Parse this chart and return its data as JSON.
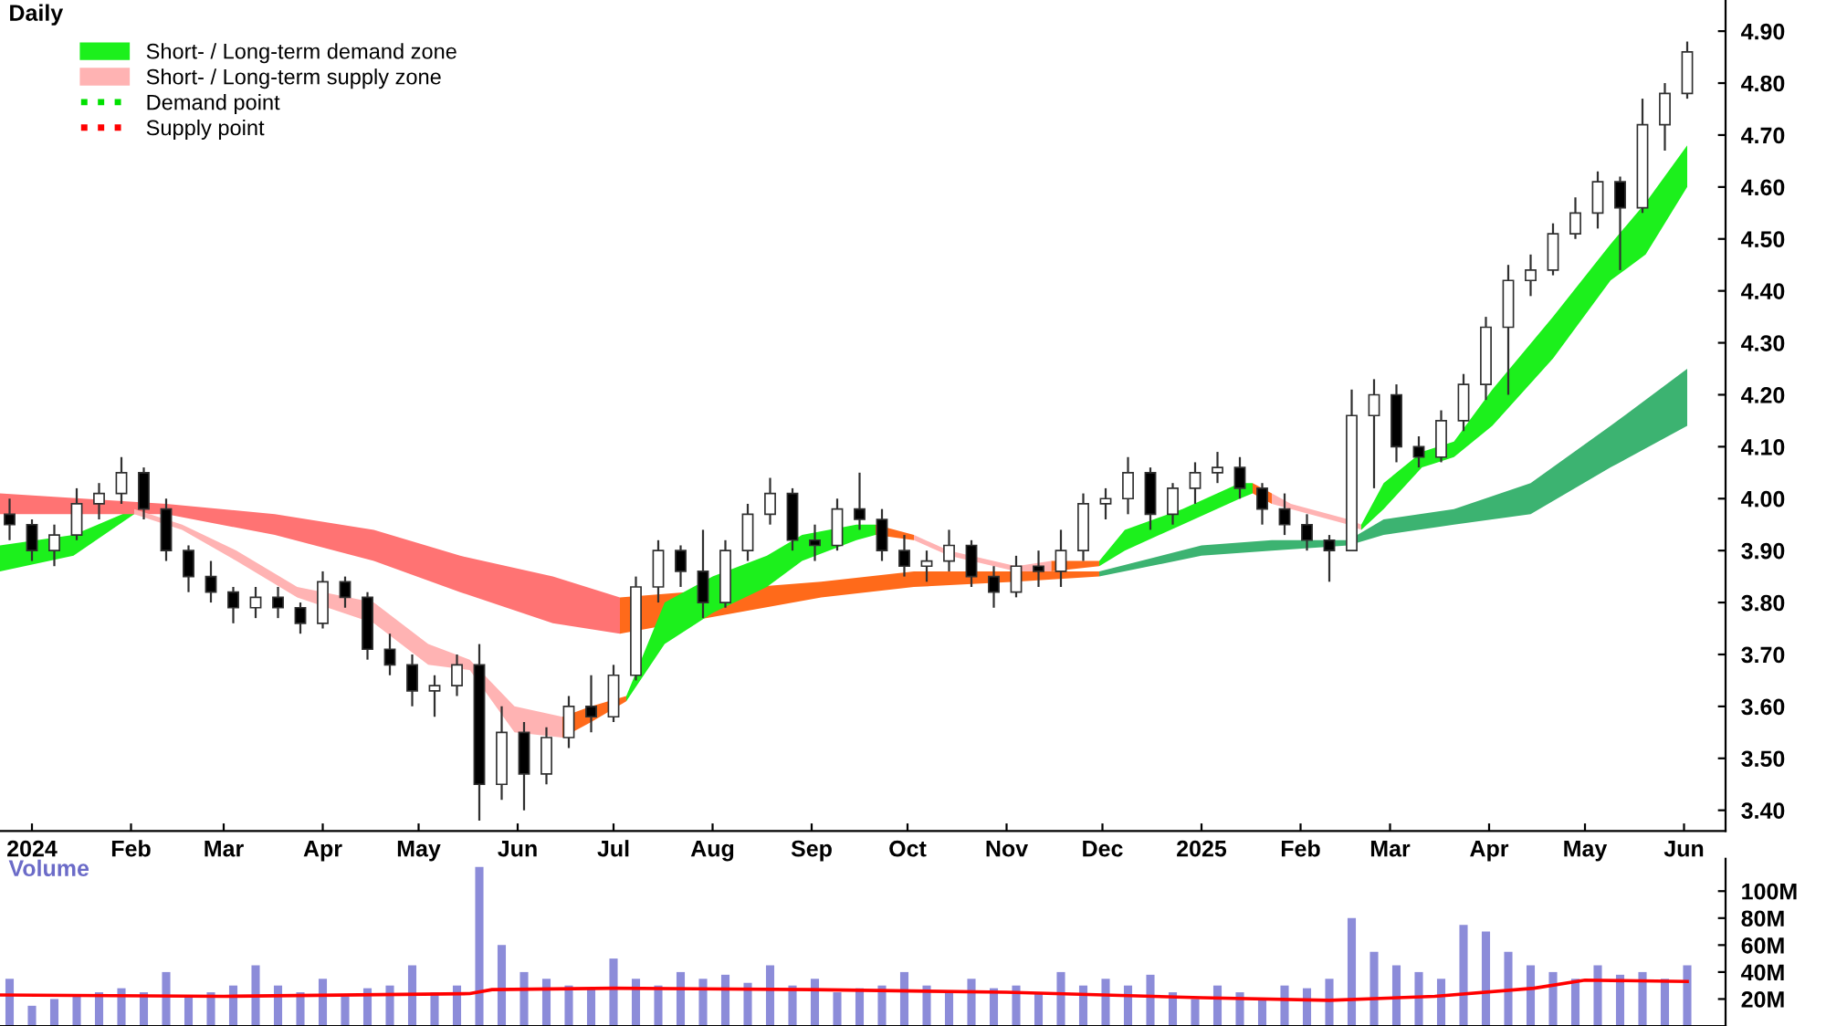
{
  "chart_data": [
    {
      "type": "candlestick",
      "title": "Daily",
      "x": [
        "2023-12-25",
        "2024-01-01",
        "2024-01-08",
        "2024-01-15",
        "2024-01-22",
        "2024-01-29",
        "2024-02-05",
        "2024-02-12",
        "2024-02-19",
        "2024-02-26",
        "2024-03-04",
        "2024-03-11",
        "2024-03-18",
        "2024-03-25",
        "2024-04-01",
        "2024-04-08",
        "2024-04-15",
        "2024-04-22",
        "2024-04-29",
        "2024-05-06",
        "2024-05-13",
        "2024-05-20",
        "2024-05-27",
        "2024-06-03",
        "2024-06-10",
        "2024-06-17",
        "2024-06-24",
        "2024-07-01",
        "2024-07-08",
        "2024-07-15",
        "2024-07-22",
        "2024-07-29",
        "2024-08-05",
        "2024-08-12",
        "2024-08-19",
        "2024-08-26",
        "2024-09-02",
        "2024-09-09",
        "2024-09-16",
        "2024-09-23",
        "2024-09-30",
        "2024-10-07",
        "2024-10-14",
        "2024-10-21",
        "2024-10-28",
        "2024-11-04",
        "2024-11-11",
        "2024-11-18",
        "2024-11-25",
        "2024-12-02",
        "2024-12-09",
        "2024-12-16",
        "2024-12-23",
        "2024-12-30",
        "2025-01-06",
        "2025-01-13",
        "2025-01-20",
        "2025-01-27",
        "2025-02-03",
        "2025-02-10",
        "2025-02-17",
        "2025-02-24",
        "2025-03-03",
        "2025-03-10",
        "2025-03-17",
        "2025-03-24",
        "2025-03-31",
        "2025-04-07",
        "2025-04-14",
        "2025-04-21",
        "2025-04-28",
        "2025-05-05",
        "2025-05-12",
        "2025-05-19",
        "2025-05-26",
        "2025-06-02"
      ],
      "ohlc": [
        [
          3.97,
          4.0,
          3.92,
          3.95
        ],
        [
          3.95,
          3.96,
          3.88,
          3.9
        ],
        [
          3.9,
          3.95,
          3.87,
          3.93
        ],
        [
          3.93,
          4.02,
          3.92,
          3.99
        ],
        [
          3.99,
          4.03,
          3.96,
          4.01
        ],
        [
          4.01,
          4.08,
          3.99,
          4.05
        ],
        [
          4.05,
          4.06,
          3.96,
          3.98
        ],
        [
          3.98,
          4.0,
          3.88,
          3.9
        ],
        [
          3.9,
          3.91,
          3.82,
          3.85
        ],
        [
          3.85,
          3.88,
          3.8,
          3.82
        ],
        [
          3.82,
          3.83,
          3.76,
          3.79
        ],
        [
          3.79,
          3.83,
          3.77,
          3.81
        ],
        [
          3.81,
          3.83,
          3.77,
          3.79
        ],
        [
          3.79,
          3.8,
          3.74,
          3.76
        ],
        [
          3.76,
          3.86,
          3.75,
          3.84
        ],
        [
          3.84,
          3.85,
          3.79,
          3.81
        ],
        [
          3.81,
          3.82,
          3.69,
          3.71
        ],
        [
          3.71,
          3.74,
          3.66,
          3.68
        ],
        [
          3.68,
          3.7,
          3.6,
          3.63
        ],
        [
          3.63,
          3.66,
          3.58,
          3.64
        ],
        [
          3.64,
          3.7,
          3.62,
          3.68
        ],
        [
          3.68,
          3.72,
          3.38,
          3.45
        ],
        [
          3.45,
          3.6,
          3.42,
          3.55
        ],
        [
          3.55,
          3.57,
          3.4,
          3.47
        ],
        [
          3.47,
          3.56,
          3.45,
          3.54
        ],
        [
          3.54,
          3.62,
          3.52,
          3.6
        ],
        [
          3.6,
          3.66,
          3.55,
          3.58
        ],
        [
          3.58,
          3.68,
          3.57,
          3.66
        ],
        [
          3.66,
          3.85,
          3.65,
          3.83
        ],
        [
          3.83,
          3.92,
          3.8,
          3.9
        ],
        [
          3.9,
          3.91,
          3.83,
          3.86
        ],
        [
          3.86,
          3.94,
          3.77,
          3.8
        ],
        [
          3.8,
          3.92,
          3.79,
          3.9
        ],
        [
          3.9,
          3.99,
          3.88,
          3.97
        ],
        [
          3.97,
          4.04,
          3.95,
          4.01
        ],
        [
          4.01,
          4.02,
          3.9,
          3.92
        ],
        [
          3.92,
          3.95,
          3.88,
          3.91
        ],
        [
          3.91,
          4.0,
          3.9,
          3.98
        ],
        [
          3.98,
          4.05,
          3.94,
          3.96
        ],
        [
          3.96,
          3.98,
          3.88,
          3.9
        ],
        [
          3.9,
          3.93,
          3.85,
          3.87
        ],
        [
          3.87,
          3.9,
          3.84,
          3.88
        ],
        [
          3.88,
          3.94,
          3.86,
          3.91
        ],
        [
          3.91,
          3.92,
          3.83,
          3.85
        ],
        [
          3.85,
          3.87,
          3.79,
          3.82
        ],
        [
          3.82,
          3.89,
          3.81,
          3.87
        ],
        [
          3.87,
          3.9,
          3.83,
          3.86
        ],
        [
          3.86,
          3.94,
          3.83,
          3.9
        ],
        [
          3.9,
          4.01,
          3.88,
          3.99
        ],
        [
          3.99,
          4.02,
          3.96,
          4.0
        ],
        [
          4.0,
          4.08,
          3.97,
          4.05
        ],
        [
          4.05,
          4.06,
          3.94,
          3.97
        ],
        [
          3.97,
          4.03,
          3.95,
          4.02
        ],
        [
          4.02,
          4.07,
          3.99,
          4.05
        ],
        [
          4.05,
          4.09,
          4.03,
          4.06
        ],
        [
          4.06,
          4.08,
          4.0,
          4.02
        ],
        [
          4.02,
          4.03,
          3.95,
          3.98
        ],
        [
          3.98,
          4.01,
          3.93,
          3.95
        ],
        [
          3.95,
          3.97,
          3.9,
          3.92
        ],
        [
          3.92,
          3.93,
          3.84,
          3.9
        ],
        [
          3.9,
          4.21,
          3.9,
          4.16
        ],
        [
          4.16,
          4.23,
          4.02,
          4.2
        ],
        [
          4.2,
          4.22,
          4.07,
          4.1
        ],
        [
          4.1,
          4.12,
          4.06,
          4.08
        ],
        [
          4.08,
          4.17,
          4.07,
          4.15
        ],
        [
          4.15,
          4.24,
          4.13,
          4.22
        ],
        [
          4.22,
          4.35,
          4.19,
          4.33
        ],
        [
          4.33,
          4.45,
          4.2,
          4.42
        ],
        [
          4.42,
          4.47,
          4.39,
          4.44
        ],
        [
          4.44,
          4.53,
          4.43,
          4.51
        ],
        [
          4.51,
          4.58,
          4.5,
          4.55
        ],
        [
          4.55,
          4.63,
          4.52,
          4.61
        ],
        [
          4.61,
          4.62,
          4.44,
          4.56
        ],
        [
          4.56,
          4.77,
          4.55,
          4.72
        ],
        [
          4.72,
          4.8,
          4.67,
          4.78
        ],
        [
          4.78,
          4.88,
          4.77,
          4.86
        ]
      ],
      "series": [
        {
          "type": "line",
          "color": "#3cb371",
          "x": [
            "2024-11-30",
            "2025-01-01",
            "2025-01-23",
            "2025-02-16",
            "2025-02-27",
            "2025-03-21",
            "2025-04-14",
            "2025-05-09",
            "2025-06-02"
          ],
          "values": [
            null,
            null,
            null,
            null,
            null,
            null,
            null,
            null,
            null
          ],
          "upper": [
            3.86,
            3.91,
            3.92,
            3.92,
            3.96,
            3.98,
            4.03,
            4.14,
            4.25
          ],
          "lower": [
            3.85,
            3.89,
            3.9,
            3.91,
            3.93,
            3.95,
            3.97,
            4.06,
            4.14
          ]
        },
        {
          "type": "line",
          "name": "Short- / Long-term demand zone",
          "color": "#1cf01c",
          "x": [
            "2023-12-22",
            "2024-01-14",
            "2024-02-02"
          ],
          "values": [
            null,
            null,
            null
          ],
          "upper": [
            3.91,
            3.93,
            3.98
          ],
          "lower": [
            3.86,
            3.89,
            3.97
          ]
        },
        {
          "type": "line",
          "color": "#ff7373",
          "x": [
            "2023-12-22",
            "2024-02-12",
            "2024-03-17",
            "2024-04-17",
            "2024-05-14",
            "2024-06-12",
            "2024-07-03"
          ],
          "values": [
            null,
            null,
            null,
            null,
            null,
            null,
            null
          ],
          "upper": [
            4.01,
            3.99,
            3.97,
            3.94,
            3.89,
            3.85,
            3.81
          ],
          "lower": [
            3.97,
            3.97,
            3.93,
            3.88,
            3.82,
            3.76,
            3.74
          ]
        },
        {
          "type": "line",
          "name": "Short- / Long-term supply zone",
          "color": "#ffb3b3",
          "x": [
            "2024-02-02",
            "2024-02-17",
            "2024-03-05",
            "2024-03-24",
            "2024-04-17",
            "2024-05-04",
            "2024-05-17",
            "2024-05-31",
            "2024-06-15"
          ],
          "values": [
            null,
            null,
            null,
            null,
            null,
            null,
            null,
            null,
            null
          ],
          "upper": [
            3.98,
            3.95,
            3.9,
            3.83,
            3.8,
            3.72,
            3.69,
            3.6,
            3.58
          ],
          "lower": [
            3.97,
            3.94,
            3.88,
            3.81,
            3.76,
            3.68,
            3.67,
            3.55,
            3.54
          ]
        },
        {
          "type": "line",
          "color": "#ff6a1a",
          "x": [
            "2024-07-03",
            "2024-09-04",
            "2024-10-03",
            "2024-11-04",
            "2024-11-30"
          ],
          "values": [
            null,
            null,
            null,
            null,
            null
          ],
          "upper": [
            3.81,
            3.84,
            3.86,
            3.86,
            3.86
          ],
          "lower": [
            3.74,
            3.81,
            3.83,
            3.84,
            3.85
          ]
        },
        {
          "type": "line",
          "color": "#ff6a1a",
          "x": [
            "2024-06-15",
            "2024-06-24",
            "2024-07-05"
          ],
          "values": [
            null,
            null,
            null
          ],
          "upper": [
            3.58,
            3.6,
            3.62
          ],
          "lower": [
            3.54,
            3.57,
            3.61
          ]
        },
        {
          "type": "line",
          "color": "#1cf01c",
          "x": [
            "2024-07-05",
            "2024-07-17",
            "2024-08-01",
            "2024-08-18",
            "2024-08-29",
            "2024-09-15",
            "2024-09-21"
          ],
          "values": [
            null,
            null,
            null,
            null,
            null,
            null,
            null
          ],
          "upper": [
            3.62,
            3.8,
            3.85,
            3.89,
            3.93,
            3.95,
            3.95
          ],
          "lower": [
            3.61,
            3.72,
            3.78,
            3.83,
            3.88,
            3.92,
            3.93
          ]
        },
        {
          "type": "line",
          "color": "#ff6a1a",
          "x": [
            "2024-09-21",
            "2024-10-03"
          ],
          "values": [
            null,
            null
          ],
          "upper": [
            3.95,
            3.93
          ],
          "lower": [
            3.93,
            3.92
          ]
        },
        {
          "type": "line",
          "color": "#ffb3b3",
          "x": [
            "2024-10-03",
            "2024-10-14",
            "2024-11-04",
            "2024-11-15"
          ],
          "values": [
            null,
            null,
            null,
            null
          ],
          "upper": [
            3.93,
            3.9,
            3.87,
            3.88
          ],
          "lower": [
            3.92,
            3.89,
            3.86,
            3.86
          ]
        },
        {
          "type": "line",
          "color": "#ff6a1a",
          "x": [
            "2024-11-15",
            "2024-11-30"
          ],
          "values": [
            null,
            null
          ],
          "upper": [
            3.88,
            3.88
          ],
          "lower": [
            3.86,
            3.87
          ]
        },
        {
          "type": "line",
          "color": "#1cf01c",
          "x": [
            "2024-11-30",
            "2024-12-08",
            "2024-12-26",
            "2025-01-13",
            "2025-01-17"
          ],
          "values": [
            null,
            null,
            null,
            null,
            null
          ],
          "upper": [
            3.88,
            3.94,
            3.98,
            4.03,
            4.03
          ],
          "lower": [
            3.87,
            3.9,
            3.95,
            4.0,
            4.01
          ]
        },
        {
          "type": "line",
          "color": "#ff6a1a",
          "x": [
            "2025-01-17",
            "2025-01-23"
          ],
          "values": [
            null,
            null
          ],
          "upper": [
            4.03,
            4.01
          ],
          "lower": [
            4.01,
            3.99
          ]
        },
        {
          "type": "line",
          "color": "#ffb3b3",
          "x": [
            "2025-01-23",
            "2025-01-29",
            "2025-02-16",
            "2025-02-20"
          ],
          "values": [
            null,
            null,
            null,
            null
          ],
          "upper": [
            4.01,
            3.99,
            3.96,
            3.95
          ],
          "lower": [
            3.99,
            3.98,
            3.95,
            3.94
          ]
        },
        {
          "type": "line",
          "color": "#1cf01c",
          "x": [
            "2025-02-20",
            "2025-02-27",
            "2025-03-11",
            "2025-03-21",
            "2025-04-02",
            "2025-04-21",
            "2025-05-09",
            "2025-05-20",
            "2025-06-02"
          ],
          "values": [
            null,
            null,
            null,
            null,
            null,
            null,
            null,
            null,
            null
          ],
          "upper": [
            3.95,
            4.03,
            4.09,
            4.11,
            4.21,
            4.35,
            4.49,
            4.57,
            4.68
          ],
          "lower": [
            3.94,
            3.98,
            4.06,
            4.08,
            4.14,
            4.27,
            4.42,
            4.47,
            4.6
          ]
        },
        {
          "type": "line",
          "name": "Demand point",
          "color": "#00e000",
          "line_style": "dotted",
          "values": [
            null,
            null,
            null,
            null,
            null,
            null,
            null,
            null,
            null,
            null,
            null,
            null,
            null,
            null,
            null,
            null,
            null,
            null,
            null,
            null,
            null,
            null,
            null,
            null,
            null,
            null,
            null,
            null,
            null,
            null,
            null,
            null,
            null,
            null,
            null,
            null,
            null,
            null,
            null,
            null,
            null,
            null,
            null,
            null,
            null,
            null,
            null,
            null,
            null,
            null,
            null,
            null,
            null,
            null,
            null,
            null,
            null,
            null,
            null,
            null,
            null,
            null,
            null,
            null,
            null,
            null,
            null,
            null,
            null,
            null,
            null,
            null,
            null,
            null,
            null,
            null
          ]
        },
        {
          "type": "line",
          "name": "Supply point",
          "color": "#ff0000",
          "line_style": "dotted",
          "values": [
            null,
            null,
            null,
            null,
            null,
            null,
            null,
            null,
            null,
            null,
            null,
            null,
            null,
            null,
            null,
            null,
            null,
            null,
            null,
            null,
            null,
            null,
            null,
            null,
            null,
            null,
            null,
            null,
            null,
            null,
            null,
            null,
            null,
            null,
            null,
            null,
            null,
            null,
            null,
            null,
            null,
            null,
            null,
            null,
            null,
            null,
            null,
            null,
            null,
            null,
            null,
            null,
            null,
            null,
            null,
            null,
            null,
            null,
            null,
            null,
            null,
            null,
            null,
            null,
            null,
            null,
            null,
            null,
            null,
            null,
            null,
            null,
            null,
            null,
            null,
            null
          ]
        }
      ],
      "xlim": [
        "2023-12-22",
        "2025-06-14"
      ],
      "xticks": [
        {
          "value": "2024-01-01",
          "label": "2024"
        },
        {
          "value": "2024-02-01",
          "label": "Feb"
        },
        {
          "value": "2024-03-01",
          "label": "Mar"
        },
        {
          "value": "2024-04-01",
          "label": "Apr"
        },
        {
          "value": "2024-05-01",
          "label": "May"
        },
        {
          "value": "2024-06-01",
          "label": "Jun"
        },
        {
          "value": "2024-07-01",
          "label": "Jul"
        },
        {
          "value": "2024-08-01",
          "label": "Aug"
        },
        {
          "value": "2024-09-01",
          "label": "Sep"
        },
        {
          "value": "2024-10-01",
          "label": "Oct"
        },
        {
          "value": "2024-11-01",
          "label": "Nov"
        },
        {
          "value": "2024-12-01",
          "label": "Dec"
        },
        {
          "value": "2025-01-01",
          "label": "2025"
        },
        {
          "value": "2025-02-01",
          "label": "Feb"
        },
        {
          "value": "2025-03-01",
          "label": "Mar"
        },
        {
          "value": "2025-04-01",
          "label": "Apr"
        },
        {
          "value": "2025-05-01",
          "label": "May"
        },
        {
          "value": "2025-06-01",
          "label": "Jun"
        }
      ],
      "ylim": [
        3.36,
        4.96
      ],
      "yticks": [
        {
          "value": 3.4,
          "label": "3.40"
        },
        {
          "value": 3.5,
          "label": "3.50"
        },
        {
          "value": 3.6,
          "label": "3.60"
        },
        {
          "value": 3.7,
          "label": "3.70"
        },
        {
          "value": 3.8,
          "label": "3.80"
        },
        {
          "value": 3.9,
          "label": "3.90"
        },
        {
          "value": 4.0,
          "label": "4.00"
        },
        {
          "value": 4.1,
          "label": "4.10"
        },
        {
          "value": 4.2,
          "label": "4.20"
        },
        {
          "value": 4.3,
          "label": "4.30"
        },
        {
          "value": 4.4,
          "label": "4.40"
        },
        {
          "value": 4.5,
          "label": "4.50"
        },
        {
          "value": 4.6,
          "label": "4.60"
        },
        {
          "value": 4.7,
          "label": "4.70"
        },
        {
          "value": 4.8,
          "label": "4.80"
        },
        {
          "value": 4.9,
          "label": "4.90"
        }
      ],
      "legend": "top left"
    },
    {
      "type": "bar",
      "title": "Volume",
      "x": [
        "2023-12-25",
        "2024-01-01",
        "2024-01-08",
        "2024-01-15",
        "2024-01-22",
        "2024-01-29",
        "2024-02-05",
        "2024-02-12",
        "2024-02-19",
        "2024-02-26",
        "2024-03-04",
        "2024-03-11",
        "2024-03-18",
        "2024-03-25",
        "2024-04-01",
        "2024-04-08",
        "2024-04-15",
        "2024-04-22",
        "2024-04-29",
        "2024-05-06",
        "2024-05-13",
        "2024-05-20",
        "2024-05-27",
        "2024-06-03",
        "2024-06-10",
        "2024-06-17",
        "2024-06-24",
        "2024-07-01",
        "2024-07-08",
        "2024-07-15",
        "2024-07-22",
        "2024-07-29",
        "2024-08-05",
        "2024-08-12",
        "2024-08-19",
        "2024-08-26",
        "2024-09-02",
        "2024-09-09",
        "2024-09-16",
        "2024-09-23",
        "2024-09-30",
        "2024-10-07",
        "2024-10-14",
        "2024-10-21",
        "2024-10-28",
        "2024-11-04",
        "2024-11-11",
        "2024-11-18",
        "2024-11-25",
        "2024-12-02",
        "2024-12-09",
        "2024-12-16",
        "2024-12-23",
        "2024-12-30",
        "2025-01-06",
        "2025-01-13",
        "2025-01-20",
        "2025-01-27",
        "2025-02-03",
        "2025-02-10",
        "2025-02-17",
        "2025-02-24",
        "2025-03-03",
        "2025-03-10",
        "2025-03-17",
        "2025-03-24",
        "2025-03-31",
        "2025-04-07",
        "2025-04-14",
        "2025-04-21",
        "2025-04-28",
        "2025-05-05",
        "2025-05-12",
        "2025-05-19",
        "2025-05-26",
        "2025-06-02"
      ],
      "series": [
        {
          "type": "bar",
          "color": "#8c8cd9",
          "values": [
            35,
            15,
            20,
            22,
            25,
            28,
            25,
            40,
            22,
            25,
            30,
            45,
            30,
            25,
            35,
            22,
            28,
            30,
            45,
            25,
            30,
            118,
            60,
            40,
            35,
            30,
            28,
            50,
            35,
            30,
            40,
            35,
            38,
            32,
            45,
            30,
            35,
            25,
            28,
            30,
            40,
            30,
            25,
            35,
            28,
            30,
            25,
            40,
            30,
            35,
            30,
            38,
            25,
            20,
            30,
            25,
            20,
            30,
            28,
            35,
            80,
            55,
            45,
            40,
            35,
            75,
            70,
            55,
            45,
            40,
            35,
            45,
            38,
            40,
            35,
            45
          ]
        },
        {
          "type": "line",
          "color": "#ff0000",
          "x": [
            "2023-12-22",
            "2024-03-01",
            "2024-05-17",
            "2024-05-24",
            "2024-07-01",
            "2024-09-01",
            "2024-11-01",
            "2025-01-01",
            "2025-02-10",
            "2025-03-15",
            "2025-04-15",
            "2025-05-01",
            "2025-06-02"
          ],
          "values": [
            23,
            22,
            24,
            27,
            28,
            27,
            25,
            21,
            19,
            22,
            28,
            34,
            33
          ]
        }
      ],
      "xlim": [
        "2023-12-22",
        "2025-06-14"
      ],
      "ylim": [
        0,
        124
      ],
      "yticks": [
        {
          "value": 20,
          "label": "20M"
        },
        {
          "value": 40,
          "label": "40M"
        },
        {
          "value": 60,
          "label": "60M"
        },
        {
          "value": 80,
          "label": "80M"
        },
        {
          "value": 100,
          "label": "100M"
        }
      ],
      "tick_labels": "y"
    }
  ]
}
